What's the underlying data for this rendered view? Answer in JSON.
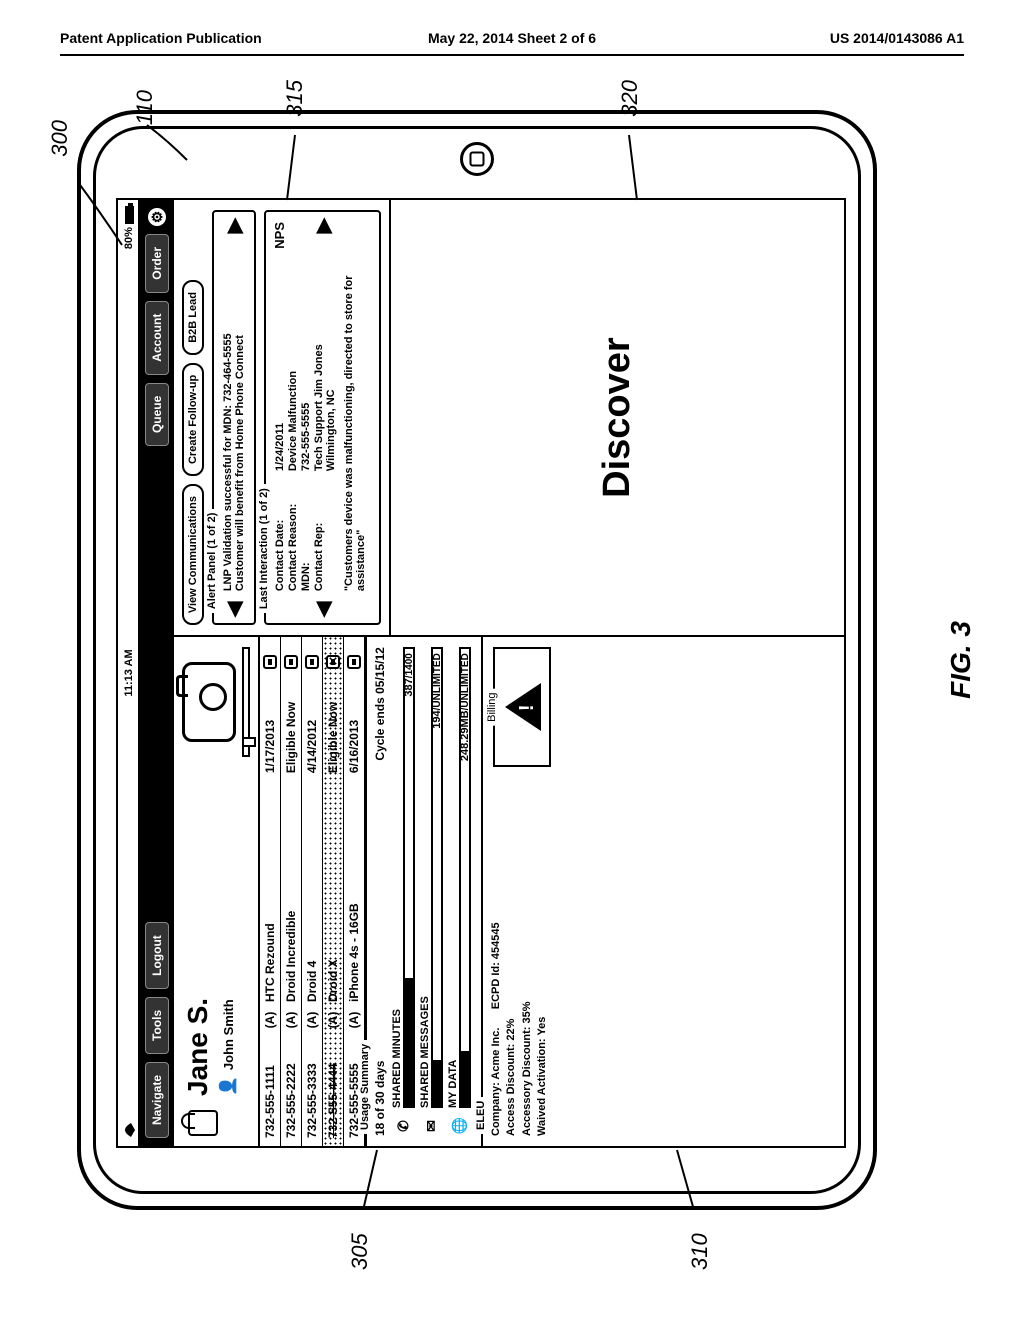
{
  "page_header": {
    "left": "Patent Application Publication",
    "mid": "May 22, 2014  Sheet 2 of 6",
    "right": "US 2014/0143086 A1"
  },
  "figure_label": "FIG. 3",
  "status": {
    "time": "11:13 AM",
    "battery": "80%"
  },
  "nav": {
    "navigate": "Navigate",
    "tools": "Tools",
    "logout": "Logout",
    "queue": "Queue",
    "account": "Account",
    "order": "Order"
  },
  "profile": {
    "name": "Jane S.",
    "assoc": "John Smith"
  },
  "devices": [
    {
      "mdn": "732-555-1111",
      "a": "(A)",
      "device": "HTC Rezound",
      "date": "1/17/2013",
      "dotted": false
    },
    {
      "mdn": "732-555-2222",
      "a": "(A)",
      "device": "Droid Incredible",
      "date": "Eligible Now",
      "dotted": false
    },
    {
      "mdn": "732-555-3333",
      "a": "(A)",
      "device": "Droid 4",
      "date": "4/14/2012",
      "dotted": false
    },
    {
      "mdn": "732-555-4444",
      "a": "(A)",
      "device": "Droid X",
      "date": "Eligible Now",
      "dotted": true
    },
    {
      "mdn": "732-555-5555",
      "a": "(A)",
      "device": "iPhone 4s - 16GB",
      "date": "6/16/2013",
      "dotted": false
    }
  ],
  "usage": {
    "title": "Usage Summary",
    "days": "18 of 30 days",
    "cycle": "Cycle ends 05/15/12",
    "rows": [
      {
        "icon": "phone",
        "label": "SHARED MINUTES",
        "value": "387",
        "cap": "/1400",
        "fill_pct": 28
      },
      {
        "icon": "msg",
        "label": "SHARED MESSAGES",
        "value": "194",
        "cap": "/UNLIMITED",
        "fill_pct": 10
      },
      {
        "icon": "globe",
        "label": "MY DATA",
        "value": "248.29MB",
        "cap": "/UNLIMITED",
        "fill_pct": 12
      }
    ]
  },
  "eleu": {
    "title": "ELEU",
    "company": "Company:  Acme Inc.",
    "ecpd": "ECPD Id:  454545",
    "access": "Access Discount:  22%",
    "accessory": "Accessory Discount:  35%",
    "waived": "Waived Activation:  Yes",
    "billing": "Billing"
  },
  "buttons": {
    "view_comm": "View Communications",
    "follow_up": "Create Follow-up",
    "b2b": "B2B Lead"
  },
  "alert": {
    "title": "Alert Panel (1 of 2)",
    "line1": "LNP Validation successful for MDN: 732-464-5555",
    "line2": "Customer will benefit from Home Phone Connect"
  },
  "last": {
    "title": "Last Interaction (1 of 2)",
    "date_k": "Contact Date:",
    "date_v": "1/24/2011",
    "reason_k": "Contact Reason:",
    "reason_v": "Device Malfunction",
    "mdn_k": "MDN:",
    "mdn_v": "732-555-5555",
    "rep_k": "Contact Rep:",
    "rep_v1": "Tech Support Jim Jones",
    "rep_v2": "Wilmington, NC",
    "note": "\"Customers device was malfunctioning, directed to store for assistance\"",
    "nps": "NPS"
  },
  "discover": "Discover",
  "callouts": {
    "c300": "300",
    "c110": "110",
    "c305": "305",
    "c310": "310",
    "c315": "315",
    "c320": "320"
  }
}
